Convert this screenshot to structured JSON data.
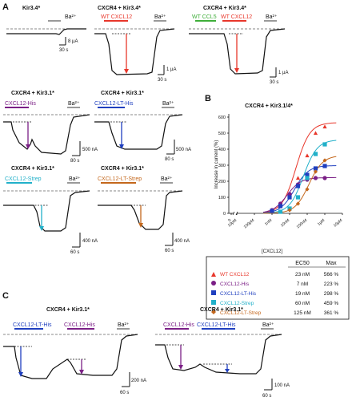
{
  "panel_letters": {
    "a": "A",
    "b": "B",
    "c": "C"
  },
  "colors": {
    "red": "#e8372b",
    "purple": "#7b1f86",
    "blue": "#1f3fbf",
    "cyan": "#22b0c9",
    "orange": "#c4671c",
    "green": "#3fae3a",
    "gray": "#9a9a9a",
    "black": "#111111"
  },
  "panel_a": {
    "t1": {
      "title": "Kir3.4*",
      "ba": "Ba²⁺",
      "scale_y": "8 µA",
      "scale_x": "30 s"
    },
    "t2": {
      "title": "CXCR4 + Kir3.4*",
      "ligand": "WT CXCL12",
      "ba": "Ba²⁺",
      "scale_y": "1 µA",
      "scale_x": "30 s"
    },
    "t3": {
      "title": "CXCR4 + Kir3.4*",
      "ligand1": "WT CCL5",
      "ligand2": "WT CXCL12",
      "ba": "Ba²⁺",
      "scale_y": "1 µA",
      "scale_x": "30 s"
    },
    "t4": {
      "title": "CXCR4 + Kir3.1*",
      "ligand": "CXCL12-His",
      "ba": "Ba²⁺",
      "scale_y": "500 nA",
      "scale_x": "80 s"
    },
    "t5": {
      "title": "CXCR4 + Kir3.1*",
      "ligand": "CXCL12-LT-His",
      "ba": "Ba²⁺",
      "scale_y": "500 nA",
      "scale_x": "80 s"
    },
    "t6": {
      "title": "CXCR4 + Kir3.1*",
      "ligand": "CXCL12-Strep",
      "ba": "Ba²⁺",
      "scale_y": "400 nA",
      "scale_x": "60 s"
    },
    "t7": {
      "title": "CXCR4 + Kir3.1*",
      "ligand": "CXCL12-LT-Strep",
      "ba": "Ba²⁺",
      "scale_y": "400 nA",
      "scale_x": "60 s"
    }
  },
  "panel_c": {
    "t1": {
      "title": "CXCR4 + Kir3.1*",
      "ligand1": "CXCL12-LT-His",
      "ligand2": "CXCL12-His",
      "ba": "Ba²⁺",
      "scale_y": "200 nA",
      "scale_x": "60 s"
    },
    "t2": {
      "title": "CXCR4 + Kir3.1*",
      "ligand1": "CXCL12-His",
      "ligand2": "CXCL12-LT-His",
      "ba": "Ba²⁺",
      "scale_y": "100 nA",
      "scale_x": "60 s"
    }
  },
  "chart_data": {
    "type": "scatter",
    "title": "CXCR4 + Kir3.1/4*",
    "ylabel": "Increase in current (%)",
    "xlabel": "[CXCL12]",
    "x_ticks": [
      "0",
      "10pM",
      "100pM",
      "1nM",
      "10nM",
      "100nM",
      "1µM",
      "10µM"
    ],
    "y_ticks": [
      "0",
      "100",
      "200",
      "300",
      "400",
      "500",
      "600"
    ],
    "ylim": [
      0,
      600
    ],
    "log_x": true,
    "x_range_log10M": [
      -11,
      -5
    ],
    "legend_header": {
      "ec50": "EC50",
      "max": "Max"
    },
    "series": [
      {
        "name": "WT CXCL12",
        "ec50": "23 nM",
        "max": "566 %",
        "color": "#e8372b",
        "marker": "triangle",
        "ec50_nM": 23,
        "max_pct": 566,
        "x": [
          "1nM",
          "3nM",
          "10nM",
          "30nM",
          "100nM",
          "300nM",
          "1µM"
        ],
        "y": [
          20,
          60,
          120,
          220,
          360,
          500,
          540
        ]
      },
      {
        "name": "CXCL12-His",
        "ec50": "7 nM",
        "max": "223 %",
        "color": "#7b1f86",
        "marker": "circle",
        "ec50_nM": 7,
        "max_pct": 223,
        "x": [
          "1nM",
          "3nM",
          "10nM",
          "30nM",
          "100nM",
          "300nM",
          "1µM"
        ],
        "y": [
          20,
          60,
          120,
          180,
          210,
          220,
          220
        ]
      },
      {
        "name": "CXCL12-LT-His",
        "ec50": "19 nM",
        "max": "298 %",
        "color": "#1f3fbf",
        "marker": "square",
        "ec50_nM": 19,
        "max_pct": 298,
        "x": [
          "1nM",
          "3nM",
          "10nM",
          "30nM",
          "100nM",
          "300nM",
          "1µM"
        ],
        "y": [
          15,
          45,
          100,
          170,
          240,
          280,
          295
        ]
      },
      {
        "name": "CXCL12-Strep",
        "ec50": "60 nM",
        "max": "459 %",
        "color": "#22b0c9",
        "marker": "square",
        "ec50_nM": 60,
        "max_pct": 459,
        "x": [
          "3nM",
          "10nM",
          "30nM",
          "100nM",
          "300nM",
          "1µM"
        ],
        "y": [
          10,
          30,
          100,
          220,
          370,
          430
        ]
      },
      {
        "name": "CXCL12-LT-Strep",
        "ec50": "125 nM",
        "max": "361 %",
        "color": "#c4671c",
        "marker": "diamond",
        "ec50_nM": 125,
        "max_pct": 361,
        "x": [
          "10nM",
          "30nM",
          "100nM",
          "300nM",
          "1µM"
        ],
        "y": [
          20,
          60,
          150,
          260,
          330
        ]
      }
    ]
  }
}
